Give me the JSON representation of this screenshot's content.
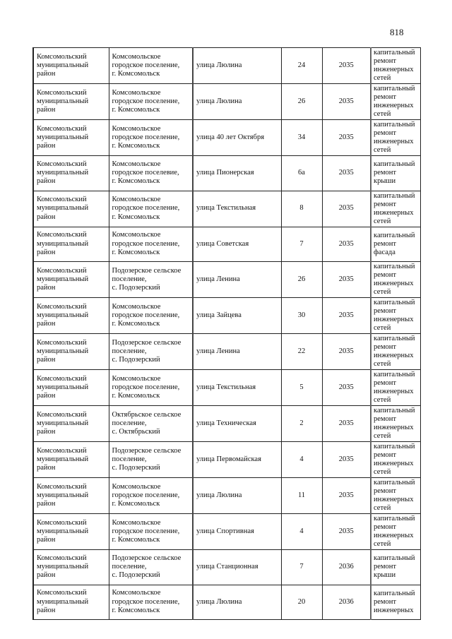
{
  "page_number": "818",
  "rows": [
    [
      "Комсомольский\nмуниципальный\nрайон",
      "Комсомольское\nгородское поселение,\nг. Комсомольск",
      "улица Люлина",
      "24",
      "2035",
      "капитальный\nремонт\nинженерных\nсетей"
    ],
    [
      "Комсомольский\nмуниципальный\nрайон",
      "Комсомольское\nгородское поселение,\nг. Комсомольск",
      "улица Люлина",
      "26",
      "2035",
      "капитальный\nремонт\nинженерных\nсетей"
    ],
    [
      "Комсомольский\nмуниципальный\nрайон",
      "Комсомольское\nгородское поселение,\nг. Комсомольск",
      "улица  40 лет Октября",
      "34",
      "2035",
      "капитальный\nремонт\nинженерных\nсетей"
    ],
    [
      "Комсомольский\nмуниципальный\nрайон",
      "Комсомольское\nгородское поселевие,\nг. Комсомольск",
      "улица Пионерская",
      "6а",
      "2035",
      "капитальный\nремонт крыши"
    ],
    [
      "Комсомольский\nмуниципальный\nрайон",
      "Комсомольское\nгородское поселение,\nг. Комсомольск",
      "улица Текстильная",
      "8",
      "2035",
      "капитальный\nремонт\nинженерных\nсетей"
    ],
    [
      "Комсомольский\nмуниципальный\nрайон",
      "Комсомольское\nгородское поселение,\nг. Комсомольск",
      "улица  Советская",
      "7",
      "2035",
      "капитальный\nремонт фасада"
    ],
    [
      "Комсомольский\nмуниципальный\nрайон",
      "Подозерское сельское\nпоселение,\nс. Подозерский",
      "  улица Ленина",
      "26",
      "2035",
      "капитальный\nремонт\nинженерных\nсетей"
    ],
    [
      "Комсомольский\nмуниципальный\nрайон",
      "Комсомольское\nгородское поселение,\nг. Комсомольск",
      "улица  Зайцева",
      "30",
      "2035",
      "капитальный\nремонт\nинженерных\nсетей"
    ],
    [
      "Комсомольский\nмуниципальный\nрайон",
      "Подозерское сельское\nпоселение,\nс. Подозерский",
      "улица Ленина",
      "22",
      "2035",
      "капитальный\nремонт\nинженерных\nсетей"
    ],
    [
      "Комсомольский\nмуниципальный\nрайон",
      "Комсомольское\nгородское поселение,\nг. Комсомольск",
      "улица Текстильная",
      "5",
      "2035",
      "капитальный\nремонт\nинженерных\nсетей"
    ],
    [
      "Комсомольский\nмуниципальный\nрайон",
      "Октябрьское сельское\nпоселение,\nс. Октябрьский",
      "улица Техническая",
      "2",
      "2035",
      "капитальный\nремонт\nинженерных\nсетей"
    ],
    [
      "Комсомольский\nмуниципальный\nрайон",
      "Подозерское сельское\nпоселение,\nс. Подозерский",
      "улица Первомайская",
      "4",
      "2035",
      "капитальный\nремонт\nинженерных\nсетей"
    ],
    [
      "Комсомольский\nмуниципальный\nрайон",
      "Комсомольское\nгородское поселение,\nг. Комсомольск",
      "улица Люлина",
      "11",
      "2035",
      "капитальный\nремонт\nинженерных\nсетей"
    ],
    [
      "Комсомольский\nмуниципальный\nрайон",
      "Комсомольское\nгородское поселение,\nг. Комсомольск",
      "улица Спортивная",
      "4",
      "2035",
      "капитальный\nремонт\nинженерных\nсетей"
    ],
    [
      "Комсомольский\nмуниципальный\nрайон",
      "Подозерское сельское\nпоселение,\nс. Подозерский",
      "улица Станционная",
      "7",
      "2036",
      "капитальный\nремонт крыши"
    ],
    [
      "Комсомольский\nмуниципальный\nрайон",
      "Комсомольское\nгородское поселение,\nг. Комсомольск",
      "улица Люлина",
      "20",
      "2036",
      "капитальный\nремонт\nинженерных"
    ]
  ]
}
